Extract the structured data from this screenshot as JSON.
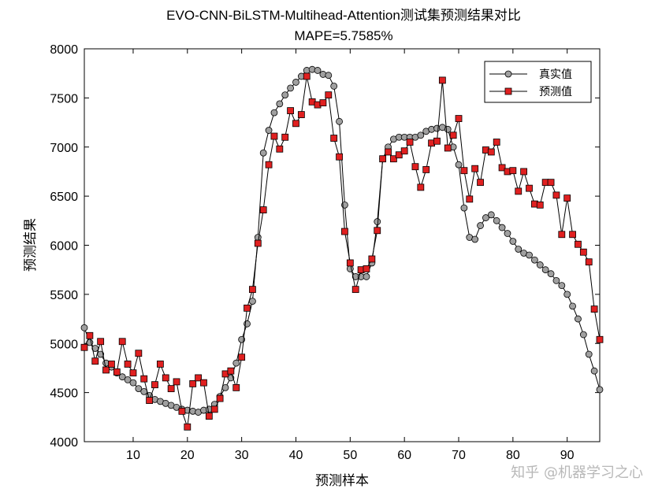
{
  "chart_data": {
    "type": "line",
    "title": "EVO-CNN-BiLSTM-Multihead-Attention测试集预测结果对比",
    "subtitle": "MAPE=5.7585%",
    "xlabel": "预测样本",
    "ylabel": "预测结果",
    "xlim": [
      1,
      96
    ],
    "ylim": [
      4000,
      8000
    ],
    "xticks": [
      10,
      20,
      30,
      40,
      50,
      60,
      70,
      80,
      90
    ],
    "yticks": [
      4000,
      4500,
      5000,
      5500,
      6000,
      6500,
      7000,
      7500,
      8000
    ],
    "grid": false,
    "legend_position": "top-right",
    "x": [
      1,
      2,
      3,
      4,
      5,
      6,
      7,
      8,
      9,
      10,
      11,
      12,
      13,
      14,
      15,
      16,
      17,
      18,
      19,
      20,
      21,
      22,
      23,
      24,
      25,
      26,
      27,
      28,
      29,
      30,
      31,
      32,
      33,
      34,
      35,
      36,
      37,
      38,
      39,
      40,
      41,
      42,
      43,
      44,
      45,
      46,
      47,
      48,
      49,
      50,
      51,
      52,
      53,
      54,
      55,
      56,
      57,
      58,
      59,
      60,
      61,
      62,
      63,
      64,
      65,
      66,
      67,
      68,
      69,
      70,
      71,
      72,
      73,
      74,
      75,
      76,
      77,
      78,
      79,
      80,
      81,
      82,
      83,
      84,
      85,
      86,
      87,
      88,
      89,
      90,
      91,
      92,
      93,
      94,
      95,
      96
    ],
    "series": [
      {
        "name": "真实值",
        "color": "#a0a0a0",
        "marker": "circle",
        "values": [
          5160,
          5010,
          4950,
          4890,
          4800,
          4760,
          4700,
          4660,
          4630,
          4600,
          4540,
          4510,
          4470,
          4430,
          4410,
          4390,
          4370,
          4350,
          4330,
          4320,
          4310,
          4300,
          4320,
          4330,
          4380,
          4460,
          4550,
          4650,
          4800,
          5040,
          5200,
          5430,
          6080,
          6940,
          7170,
          7350,
          7440,
          7530,
          7600,
          7660,
          7720,
          7780,
          7790,
          7780,
          7740,
          7730,
          7620,
          7260,
          6410,
          5760,
          5680,
          5680,
          5680,
          5820,
          6240,
          6880,
          7000,
          7080,
          7100,
          7100,
          7100,
          7100,
          7120,
          7160,
          7180,
          7190,
          7200,
          7180,
          7000,
          6820,
          6380,
          6080,
          6060,
          6200,
          6280,
          6310,
          6250,
          6180,
          6120,
          6040,
          5960,
          5920,
          5900,
          5850,
          5800,
          5750,
          5710,
          5640,
          5590,
          5500,
          5380,
          5250,
          5090,
          4890,
          4720,
          4530
        ],
        "label": ""
      },
      {
        "name": "预测值",
        "color": "#e02020",
        "marker": "square",
        "values": [
          4960,
          5080,
          4820,
          5020,
          4730,
          4790,
          4710,
          5020,
          4790,
          4700,
          4900,
          4640,
          4420,
          4580,
          4790,
          4650,
          4540,
          4610,
          4310,
          4150,
          4590,
          4650,
          4600,
          4260,
          4330,
          4440,
          4690,
          4720,
          4550,
          4860,
          5360,
          5550,
          6020,
          6360,
          6820,
          7110,
          6980,
          7100,
          7370,
          7240,
          7330,
          7720,
          7460,
          7430,
          7450,
          7530,
          7090,
          6900,
          6140,
          5820,
          5550,
          5750,
          5760,
          5860,
          6150,
          6880,
          6950,
          6880,
          6920,
          6960,
          7050,
          6800,
          6590,
          6770,
          7040,
          7060,
          7680,
          6990,
          7120,
          7290,
          6760,
          6470,
          6780,
          6640,
          6970,
          6950,
          7050,
          6790,
          6750,
          6760,
          6550,
          6750,
          6580,
          6420,
          6410,
          6640,
          6640,
          6510,
          6110,
          6480,
          6110,
          6010,
          5930,
          5830,
          5350,
          5040
        ],
        "label": ""
      }
    ]
  },
  "watermark": {
    "text": "知乎 @机器学习之心"
  }
}
